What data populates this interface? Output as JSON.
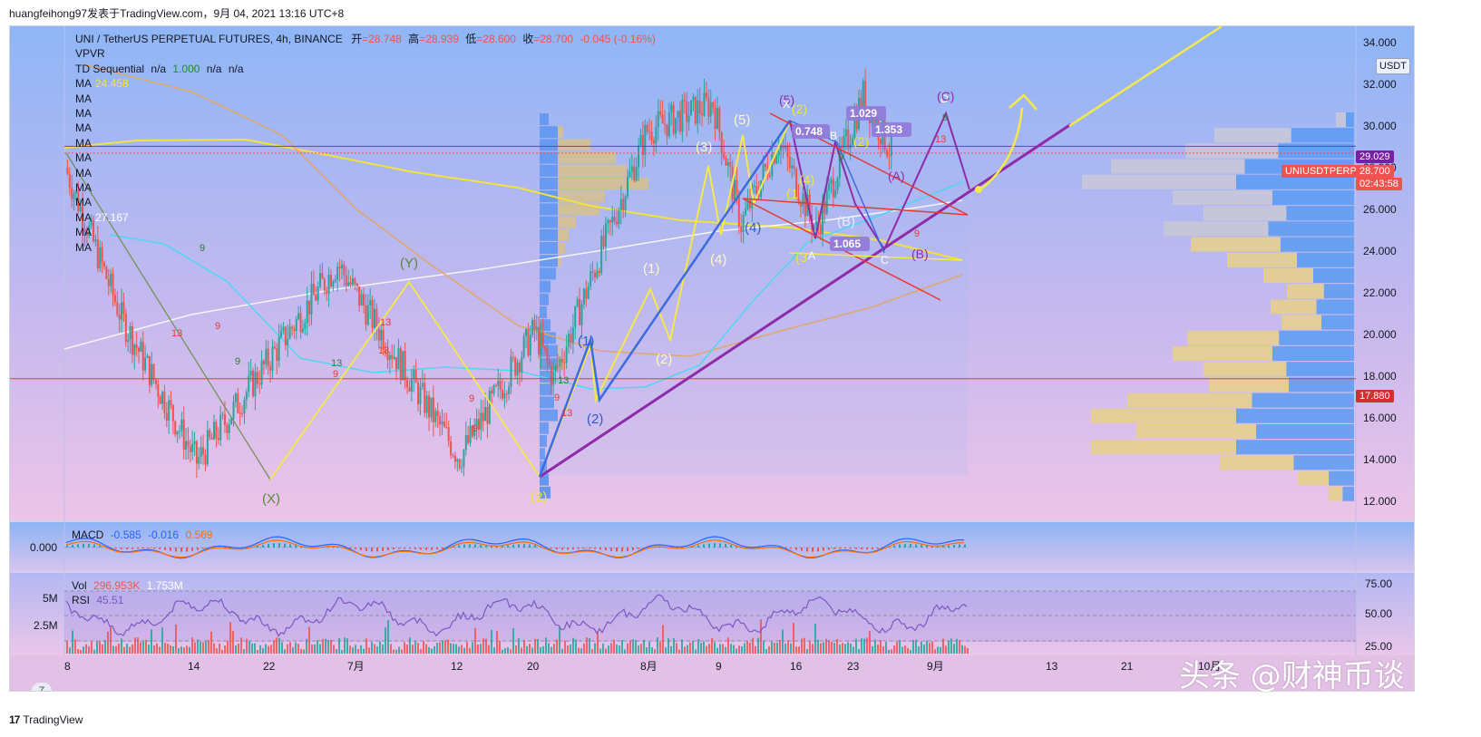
{
  "header": {
    "publisher_line": "huangfeihong97发表于TradingView.com，9月 04, 2021 13:16 UTC+8"
  },
  "legend": {
    "symbol": "UNI / TetherUS PERPETUAL FUTURES, 4h, BINANCE",
    "open_label": "开",
    "open": "=28.748",
    "high_label": "高",
    "high": "=28.939",
    "low_label": "低",
    "low": "=28.600",
    "close_label": "收",
    "close": "=28.700",
    "change": "-0.045 (-0.16%)",
    "vpvr": "VPVR",
    "td_label": "TD Sequential",
    "td_v1": "n/a",
    "td_v2": "1.000",
    "td_v3": "n/a",
    "td_v4": "n/a",
    "ma_label": "MA",
    "ma_values": [
      "24.458",
      "",
      "",
      "",
      "",
      "",
      "",
      "",
      "",
      "27.167",
      "",
      ""
    ]
  },
  "indicators": {
    "macd_label": "MACD",
    "macd_values": [
      "-0.585",
      "-0.016",
      "0.569"
    ],
    "macd_zero": "0.000",
    "vol_label": "Vol",
    "vol_values": [
      "296.953K",
      "1.753M"
    ],
    "rsi_label": "RSI",
    "rsi_value": "45.51",
    "vol_ticks": [
      "5M",
      "2.5M"
    ],
    "rsi_ticks": [
      "75.00",
      "50.00",
      "25.00"
    ]
  },
  "price_axis": {
    "currency": "USDT",
    "ticks": [
      "34.000",
      "32.000",
      "30.000",
      "28.000",
      "26.000",
      "24.000",
      "22.000",
      "20.000",
      "18.000",
      "16.000",
      "14.000",
      "12.000"
    ],
    "level_29029": "29.029",
    "symbol_tag": "UNIUSDTPERP",
    "last_price": "28.700",
    "countdown": "02:43:58",
    "level_17880": "17.880"
  },
  "time_axis": {
    "ticks": [
      "8",
      "14",
      "22",
      "7月",
      "12",
      "20",
      "8月",
      "9",
      "16",
      "23",
      "9月",
      "13",
      "21",
      "10月"
    ]
  },
  "wave_labels": {
    "x_low": "(X)",
    "y_high": "(Y)",
    "two_major": "(2)",
    "one_blue": "(1)",
    "two_blue": "(2)",
    "one_w": "(1)",
    "two_w": "(2)",
    "three_w": "(3)",
    "four_w": "(4)",
    "five_w": "(5)",
    "four_blue": "(4)",
    "five_top": "(5)",
    "two_top": "(2)",
    "ratio_0748": "0.748",
    "ratio_1029": "1.029",
    "ratio_1353": "1.353",
    "ratio_1065": "1.065",
    "b": "B",
    "a": "A",
    "c": "C",
    "d": "D",
    "x": "X",
    "a_paren": "(A)",
    "b_paren": "(B)",
    "b_light": "(B)",
    "one_y": "(1",
    "three_y": "(3",
    "c_paren": "(C)",
    "four_y": "(4)",
    "two_y": "(2)"
  },
  "td_counts": [
    "9",
    "9",
    "13",
    "9",
    "9",
    "13",
    "13",
    "9",
    "9",
    "13",
    "9",
    "13",
    "9",
    "13",
    "9",
    "9",
    "13"
  ],
  "watermark": "头条 @财神币谈",
  "footer": {
    "brand": "TradingView",
    "logo": "17"
  },
  "z_button": "Z",
  "colors": {
    "bg_top": "#93b8f7",
    "bg_bottom": "#e9c3ea",
    "bull": "#26a69a",
    "bear": "#ef5350",
    "wave_yellow": "#f5e94a",
    "wave_blue": "#3d6be0",
    "trend_purple": "#8e2ba8",
    "red_line": "#e53935",
    "ma_cyan": "#4fd6f2",
    "ma_tan": "#e0a76a",
    "ma_white": "#f5f5f5",
    "ma_yellow": "#f2e33c"
  },
  "chart_data": {
    "type": "candlestick",
    "title": "UNI / TetherUS PERPETUAL FUTURES, 4h, BINANCE",
    "ylim": [
      12,
      35.2
    ],
    "y_ticks": [
      12,
      14,
      16,
      18,
      20,
      22,
      24,
      26,
      28,
      30,
      32,
      34
    ],
    "x_ticks": [
      "8",
      "14",
      "22",
      "7月",
      "12",
      "20",
      "8月",
      "9",
      "16",
      "23",
      "9月",
      "13",
      "21",
      "10月"
    ],
    "legend_position": "top-left",
    "swing_points": [
      {
        "x": "06-08",
        "y": 28.0
      },
      {
        "x": "06-14",
        "y": 20.8
      },
      {
        "x": "06-22",
        "y": 13.9
      },
      {
        "x": "07-07",
        "y": 23.4
      },
      {
        "x": "07-20",
        "y": 14.1
      },
      {
        "x": "07-28",
        "y": 20.2
      },
      {
        "x": "07-30",
        "y": 17.9
      },
      {
        "x": "08-09",
        "y": 29.8
      },
      {
        "x": "08-16",
        "y": 31.1
      },
      {
        "x": "08-19",
        "y": 25.3
      },
      {
        "x": "08-23",
        "y": 29.3
      },
      {
        "x": "08-27",
        "y": 25.0
      },
      {
        "x": "09-01",
        "y": 31.5
      },
      {
        "x": "09-04",
        "y": 28.7
      }
    ],
    "horizontal_levels": [
      29.029,
      17.88
    ],
    "last": {
      "open": 28.748,
      "high": 28.939,
      "low": 28.6,
      "close": 28.7,
      "change": -0.045,
      "change_pct": -0.16
    },
    "macd": {
      "macd": -0.585,
      "signal": -0.016,
      "histogram": 0.569
    },
    "volume": [
      296953,
      1753000
    ],
    "rsi": 45.51
  }
}
